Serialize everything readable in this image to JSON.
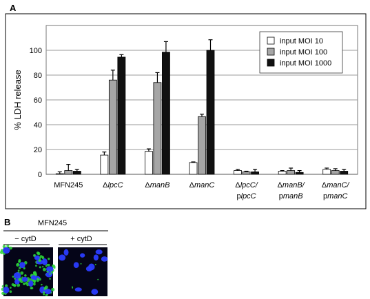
{
  "panels": {
    "a": {
      "letter": "A"
    },
    "b": {
      "letter": "B",
      "strain_label": "MFN245",
      "conditions": [
        "− cytD",
        "+ cytD"
      ]
    }
  },
  "colors": {
    "input MOI 10": "#ffffff",
    "input MOI 100": "#a6a6a6",
    "input MOI 1000": "#111111",
    "nuclei": "#2a3cff",
    "bacteria": "#2bd43a",
    "image_background": "#050518"
  },
  "chart_data": {
    "type": "bar",
    "title": "",
    "xlabel": "",
    "ylabel": "% LDH release",
    "ylim": [
      0,
      120
    ],
    "yticks": [
      0,
      20,
      40,
      60,
      80,
      100
    ],
    "grid": true,
    "legend_position": "top-right",
    "categories": [
      {
        "prefix": "",
        "main": "MFN245",
        "line2_plasmid": "",
        "line2_gene": ""
      },
      {
        "prefix": "Δ",
        "main": "lpcC",
        "line2_plasmid": "",
        "line2_gene": ""
      },
      {
        "prefix": "Δ",
        "main": "manB",
        "line2_plasmid": "",
        "line2_gene": ""
      },
      {
        "prefix": "Δ",
        "main": "manC",
        "line2_plasmid": "",
        "line2_gene": ""
      },
      {
        "prefix": "Δ",
        "main": "lpcC/",
        "line2_plasmid": "p",
        "line2_gene": "lpcC"
      },
      {
        "prefix": "Δ",
        "main": "manB/",
        "line2_plasmid": "p",
        "line2_gene": "manB"
      },
      {
        "prefix": "Δ",
        "main": "manC/",
        "line2_plasmid": "p",
        "line2_gene": "manC"
      }
    ],
    "series": [
      {
        "name": "input MOI 10",
        "values": [
          0.5,
          15.5,
          18.5,
          9.5,
          3.0,
          2.5,
          4.0
        ],
        "errors": [
          1.5,
          2.5,
          2.0,
          0.5,
          1.0,
          0.5,
          1.0
        ]
      },
      {
        "name": "input MOI 100",
        "values": [
          3.0,
          76,
          74,
          46.5,
          2.0,
          3.0,
          3.0
        ],
        "errors": [
          5.0,
          8.0,
          8.0,
          2.0,
          0.5,
          2.0,
          1.5
        ]
      },
      {
        "name": "input MOI 1000",
        "values": [
          2.5,
          94.5,
          98.5,
          100,
          2.0,
          1.5,
          2.5
        ],
        "errors": [
          1.5,
          2.0,
          8.5,
          8.5,
          2.0,
          1.5,
          1.5
        ]
      }
    ]
  }
}
